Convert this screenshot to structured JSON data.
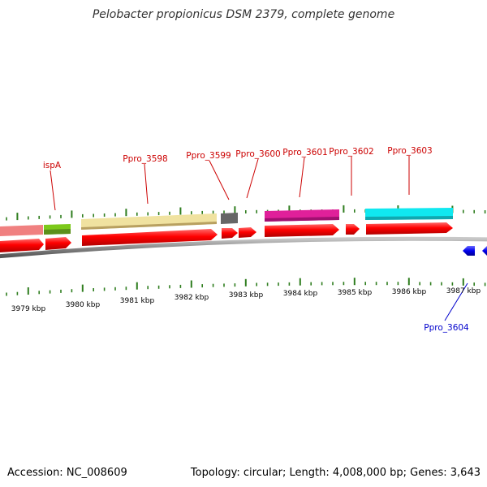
{
  "title": "Pelobacter propionicus DSM 2379, complete genome",
  "footer": {
    "accession": "Accession: NC_008609",
    "summary": "Topology: circular; Length: 4,008,000 bp; Genes: 3,643"
  },
  "colors": {
    "backbone": "#8a8a8a",
    "tick": "#2e7d1e",
    "gene_forward": "#ff0000",
    "label_forward": "#cc0000",
    "label_reverse": "#0000cc",
    "gene_reverse": "#0000ee",
    "ispA": "#7cc91a",
    "Ppro_3598": "#f0e2a0",
    "Ppro_3599": "#666666",
    "Ppro_3601": "#e0209a",
    "Ppro_3603": "#10e8f0",
    "left_partial": "#f08080"
  },
  "axis_labels": [
    "3979 kbp",
    "3980 kbp",
    "3981 kbp",
    "3982 kbp",
    "3983 kbp",
    "3984 kbp",
    "3985 kbp",
    "3986 kbp",
    "3987 kbp"
  ],
  "gene_labels": [
    {
      "name": "ispA",
      "strand": "forward"
    },
    {
      "name": "Ppro_3598",
      "strand": "forward"
    },
    {
      "name": "Ppro_3599",
      "strand": "forward"
    },
    {
      "name": "Ppro_3600",
      "strand": "forward"
    },
    {
      "name": "Ppro_3601",
      "strand": "forward"
    },
    {
      "name": "Ppro_3602",
      "strand": "forward"
    },
    {
      "name": "Ppro_3603",
      "strand": "forward"
    },
    {
      "name": "Ppro_3604",
      "strand": "reverse"
    }
  ]
}
